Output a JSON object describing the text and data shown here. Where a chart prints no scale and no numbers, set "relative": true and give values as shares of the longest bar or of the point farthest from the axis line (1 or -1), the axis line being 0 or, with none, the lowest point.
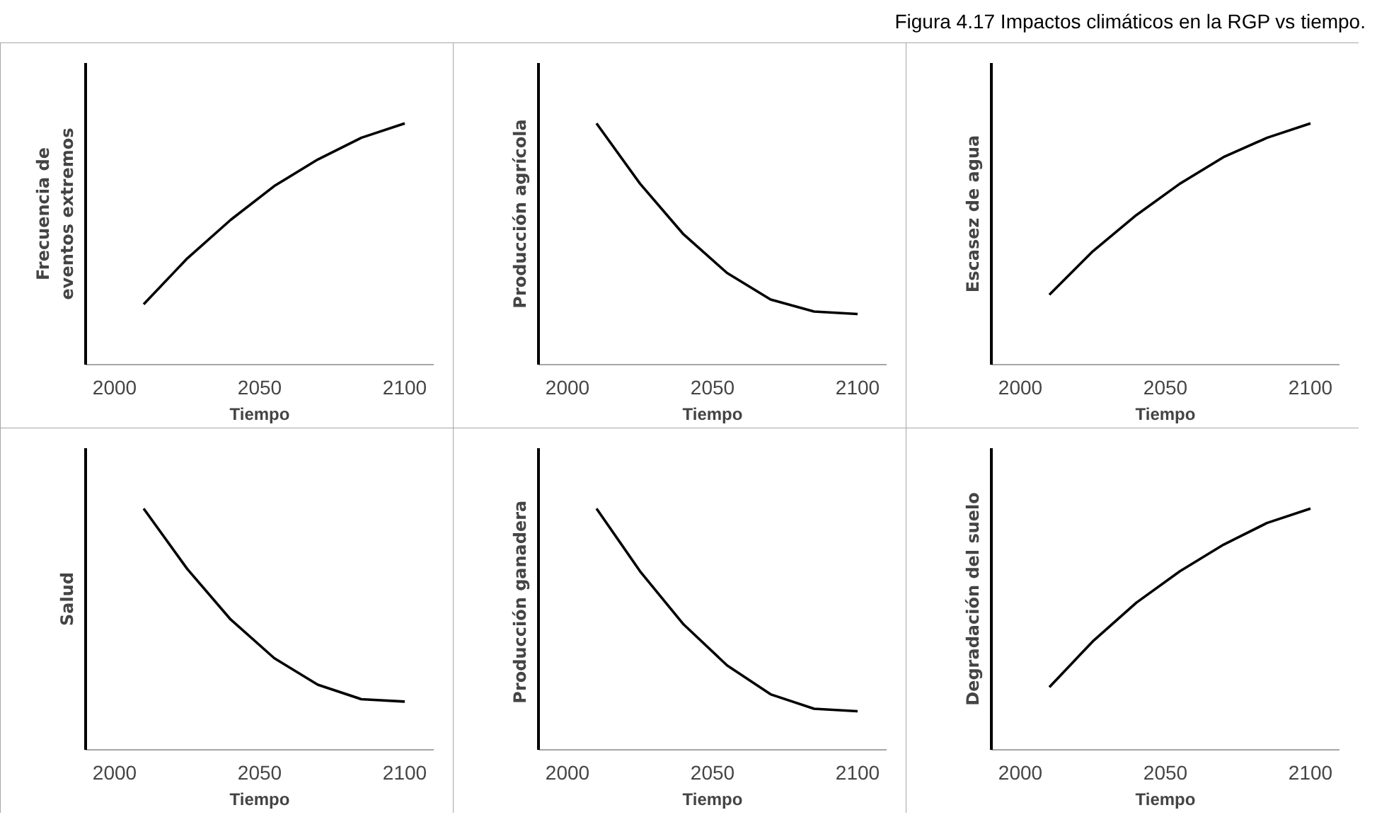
{
  "chart_data": [
    {
      "type": "other",
      "title": "Figura 4.17 Impactos climáticos en la RGP vs tiempo."
    },
    {
      "type": "line",
      "relative": true,
      "xlabel": "Tiempo",
      "ylabel": "Frecuencia de eventos extremos",
      "x": [
        2010,
        2025,
        2040,
        2055,
        2070,
        2085,
        2100
      ],
      "xlim": [
        1990,
        2110
      ],
      "xticks": [
        2000,
        2050,
        2100
      ],
      "series": [
        {
          "color": "#000000",
          "values": [
            0.25,
            0.44,
            0.6,
            0.74,
            0.85,
            0.94,
            1.0
          ]
        }
      ]
    },
    {
      "type": "line",
      "relative": true,
      "xlabel": "Tiempo",
      "ylabel": "Producción agrícola",
      "x": [
        2010,
        2025,
        2040,
        2055,
        2070,
        2085,
        2100
      ],
      "xlim": [
        1990,
        2110
      ],
      "xticks": [
        2000,
        2050,
        2100
      ],
      "series": [
        {
          "color": "#000000",
          "values": [
            1.0,
            0.75,
            0.54,
            0.38,
            0.27,
            0.22,
            0.21
          ]
        }
      ]
    },
    {
      "type": "line",
      "relative": true,
      "xlabel": "Tiempo",
      "ylabel": "Escasez de agua",
      "x": [
        2010,
        2025,
        2040,
        2055,
        2070,
        2085,
        2100
      ],
      "xlim": [
        1990,
        2110
      ],
      "xticks": [
        2000,
        2050,
        2100
      ],
      "series": [
        {
          "color": "#000000",
          "values": [
            0.29,
            0.47,
            0.62,
            0.75,
            0.86,
            0.94,
            1.0
          ]
        }
      ]
    },
    {
      "type": "line",
      "relative": true,
      "xlabel": "Tiempo",
      "ylabel": "Salud",
      "x": [
        2010,
        2025,
        2040,
        2055,
        2070,
        2085,
        2100
      ],
      "xlim": [
        1990,
        2110
      ],
      "xticks": [
        2000,
        2050,
        2100
      ],
      "series": [
        {
          "color": "#000000",
          "values": [
            1.0,
            0.75,
            0.54,
            0.38,
            0.27,
            0.21,
            0.2
          ]
        }
      ]
    },
    {
      "type": "line",
      "relative": true,
      "xlabel": "Tiempo",
      "ylabel": "Producción  ganadera",
      "x": [
        2010,
        2025,
        2040,
        2055,
        2070,
        2085,
        2100
      ],
      "xlim": [
        1990,
        2110
      ],
      "xticks": [
        2000,
        2050,
        2100
      ],
      "series": [
        {
          "color": "#000000",
          "values": [
            1.0,
            0.74,
            0.52,
            0.35,
            0.23,
            0.17,
            0.16
          ]
        }
      ]
    },
    {
      "type": "line",
      "relative": true,
      "xlabel": "Tiempo",
      "ylabel": "Degradación del suelo",
      "x": [
        2010,
        2025,
        2040,
        2055,
        2070,
        2085,
        2100
      ],
      "xlim": [
        1990,
        2110
      ],
      "xticks": [
        2000,
        2050,
        2100
      ],
      "series": [
        {
          "color": "#000000",
          "values": [
            0.26,
            0.45,
            0.61,
            0.74,
            0.85,
            0.94,
            1.0
          ]
        }
      ]
    }
  ]
}
